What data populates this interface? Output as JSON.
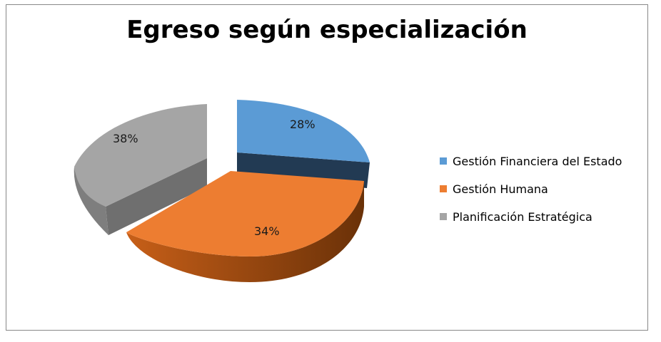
{
  "chart_data": {
    "type": "pie",
    "title": "Egreso según especialización",
    "legend_position": "right",
    "categories": [
      "Gestión Financiera del Estado",
      "Gestión Humana",
      "Planificación Estratégica"
    ],
    "values": [
      28,
      34,
      38
    ],
    "labels": [
      "28%",
      "34%",
      "38%"
    ],
    "colors": [
      "#5b9bd5",
      "#ed7d31",
      "#a5a5a5"
    ]
  }
}
